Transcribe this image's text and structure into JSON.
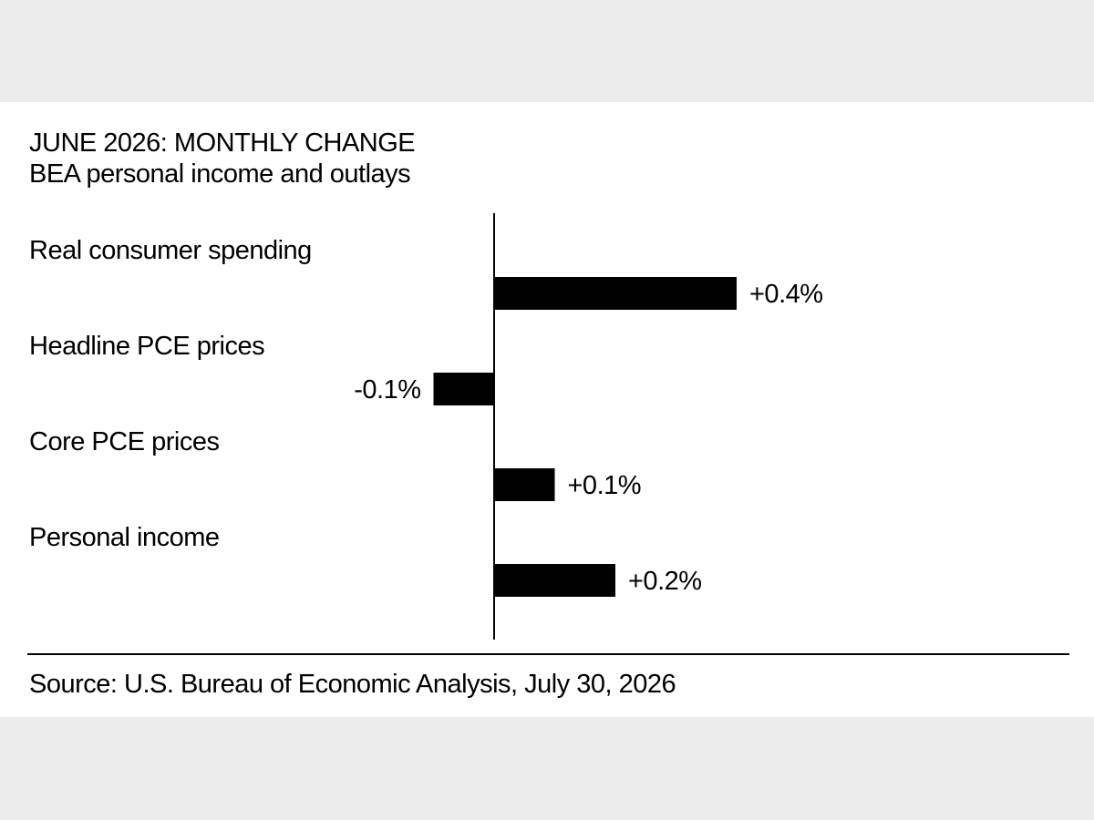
{
  "chart_data": {
    "type": "bar",
    "orientation": "horizontal",
    "title": "JUNE 2026: MONTHLY CHANGE",
    "subtitle": "BEA personal income and outlays",
    "categories": [
      "Real consumer spending",
      "Headline PCE prices",
      "Core PCE prices",
      "Personal income"
    ],
    "values": [
      0.4,
      -0.1,
      0.1,
      0.2
    ],
    "value_labels": [
      "+0.4%",
      "-0.1%",
      "+0.1%",
      "+0.2%"
    ],
    "xlabel": "",
    "ylabel": "",
    "grid": false,
    "legend": "none",
    "bar_color": "#000000"
  },
  "source": "Source: U.S. Bureau of Economic Analysis, July 30, 2026"
}
